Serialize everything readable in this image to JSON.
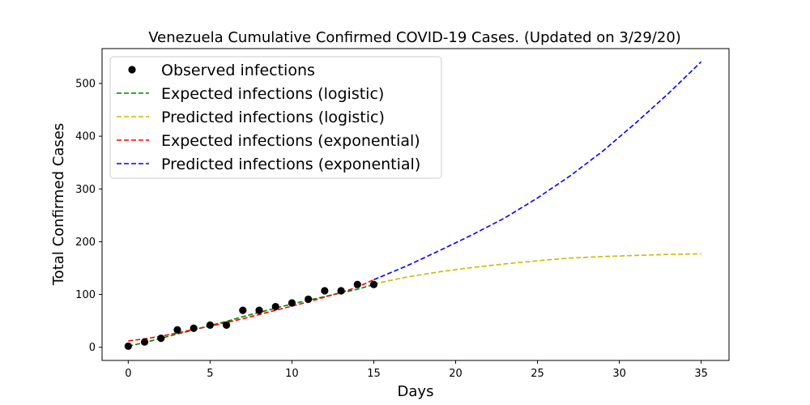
{
  "chart_data": {
    "type": "line",
    "title": "Venezuela Cumulative Confirmed COVID-19 Cases. (Updated on 3/29/20)",
    "xlabel": "Days",
    "ylabel": "Total Confirmed Cases",
    "xlim": [
      -1.6,
      36.7
    ],
    "ylim": [
      -25,
      566
    ],
    "xticks": [
      0,
      5,
      10,
      15,
      20,
      25,
      30,
      35
    ],
    "yticks": [
      0,
      100,
      200,
      300,
      400,
      500
    ],
    "grid": false,
    "legend_position": "upper-left",
    "observed": {
      "name": "Observed infections",
      "color": "#000000",
      "x": [
        0,
        1,
        2,
        3,
        4,
        5,
        6,
        7,
        8,
        9,
        10,
        11,
        12,
        13,
        14,
        15
      ],
      "y": [
        2,
        10,
        17,
        33,
        36,
        42,
        42,
        70,
        70,
        77,
        84,
        91,
        107,
        107,
        119,
        119
      ]
    },
    "series": [
      {
        "name": "Expected infections (logistic)",
        "color": "#008000",
        "style": "dashed",
        "x": [
          0,
          1,
          2,
          3,
          4,
          5,
          6,
          7,
          8,
          9,
          10,
          11,
          12,
          13,
          14,
          15
        ],
        "y": [
          2,
          9,
          17,
          25,
          33,
          41,
          49,
          58,
          66,
          74,
          82,
          89,
          96,
          103,
          110,
          119
        ]
      },
      {
        "name": "Predicted infections (logistic)",
        "color": "#bfbf00",
        "style": "dashed",
        "x": [
          15,
          17,
          19,
          21,
          23,
          25,
          27,
          29,
          31,
          33,
          35
        ],
        "y": [
          120,
          133,
          143,
          151,
          158,
          164,
          169,
          172,
          174,
          176,
          177
        ]
      },
      {
        "name": "Expected infections (exponential)",
        "color": "#ff0000",
        "style": "dashed",
        "x": [
          0,
          1,
          2,
          3,
          4,
          5,
          6,
          7,
          8,
          9,
          10,
          11,
          12,
          13,
          14,
          15
        ],
        "y": [
          12,
          16,
          21,
          27,
          34,
          40,
          47,
          54,
          62,
          70,
          78,
          86,
          95,
          104,
          114,
          128
        ]
      },
      {
        "name": "Predicted infections (exponential)",
        "color": "#0000ff",
        "style": "dashed",
        "x": [
          15,
          17,
          19,
          21,
          23,
          25,
          27,
          29,
          31,
          33,
          35
        ],
        "y": [
          128,
          154,
          183,
          213,
          245,
          283,
          325,
          372,
          425,
          481,
          541
        ]
      }
    ]
  }
}
